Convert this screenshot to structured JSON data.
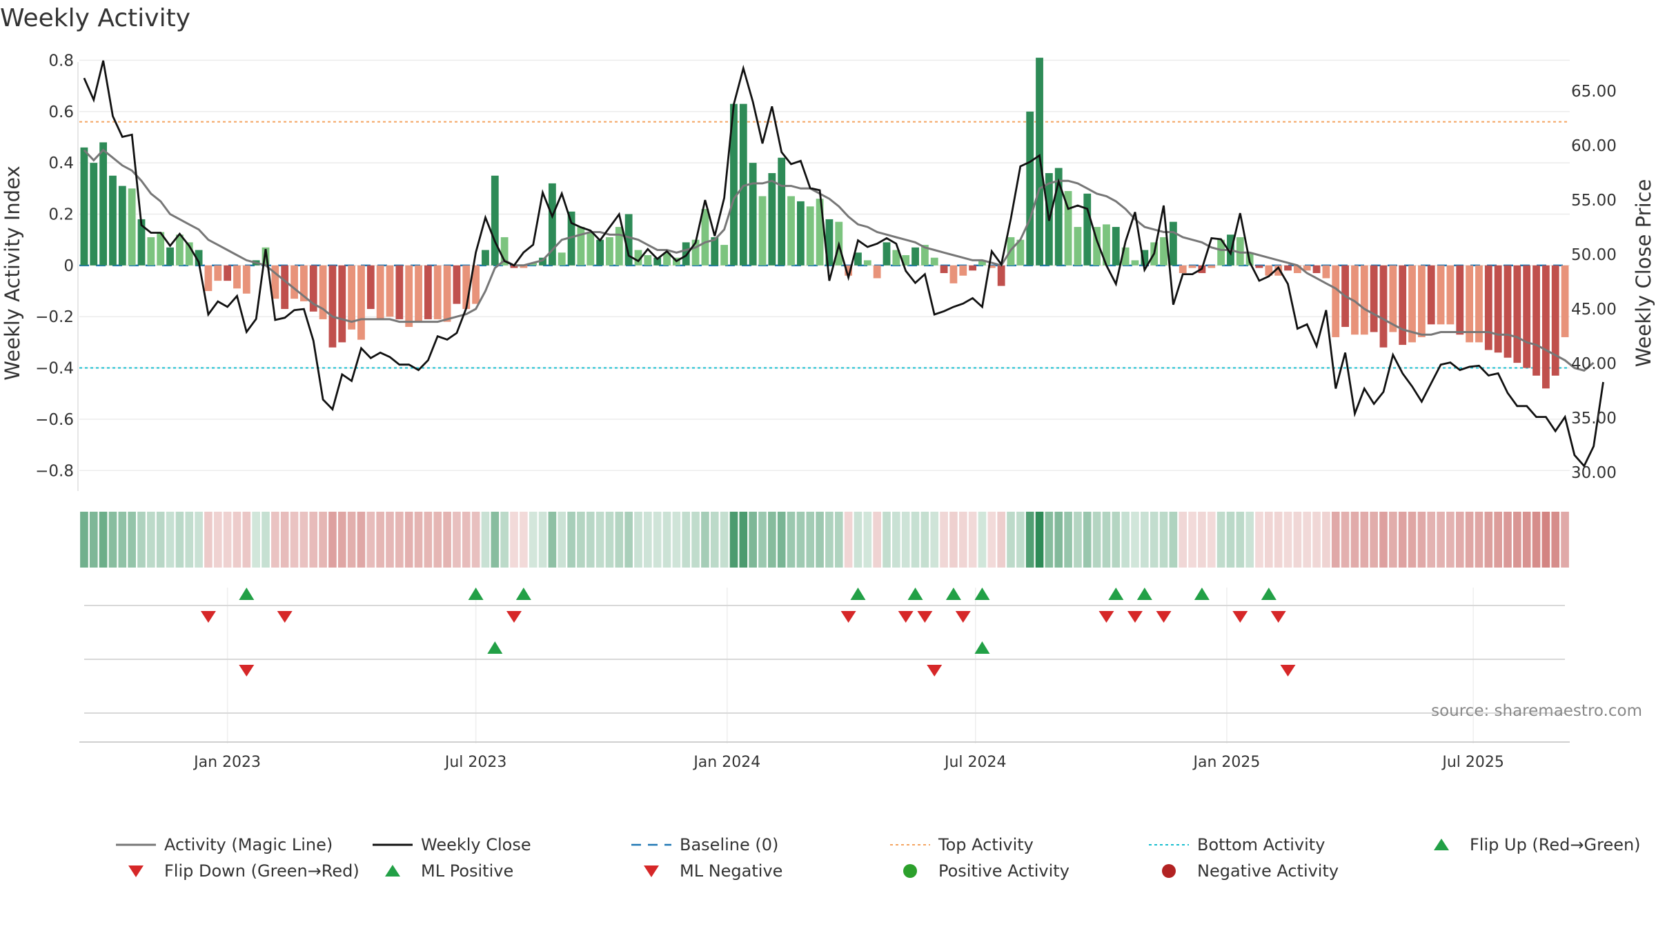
{
  "chart_data": {
    "type": "bar+line",
    "title": "Weekly Activity",
    "ylabel_left": "Weekly Activity Index",
    "ylabel_right": "Weekly Close Price",
    "ylim_left": [
      -0.88,
      0.82
    ],
    "ylim_right": [
      28.3,
      68.3
    ],
    "yticks_left": [
      0.8,
      0.6,
      0.4,
      0.2,
      0,
      -0.2,
      -0.4,
      -0.6,
      -0.8
    ],
    "yticks_left_labels": [
      "0.8",
      "0.6",
      "0.4",
      "0.2",
      "0",
      "−0.2",
      "−0.4",
      "−0.6",
      "−0.8"
    ],
    "yticks_right": [
      65,
      60,
      55,
      50,
      45,
      40,
      35,
      30
    ],
    "yticks_right_labels": [
      "65.00",
      "60.00",
      "55.00",
      "50.00",
      "45.00",
      "40.00",
      "35.00",
      "30.00"
    ],
    "x_start_week": -15,
    "xticks": [
      {
        "week": 0,
        "label": "Jan 2023"
      },
      {
        "week": 26,
        "label": "Jul 2023"
      },
      {
        "week": 52.3,
        "label": "Jan 2024"
      },
      {
        "week": 78.3,
        "label": "Jul 2024"
      },
      {
        "week": 104.6,
        "label": "Jan 2025"
      },
      {
        "week": 130.4,
        "label": "Jul 2025"
      }
    ],
    "top_activity": 0.56,
    "bottom_activity": -0.4,
    "activity": [
      0.46,
      0.4,
      0.48,
      0.35,
      0.31,
      0.3,
      0.18,
      0.11,
      0.13,
      0.07,
      0.12,
      0.09,
      0.06,
      -0.1,
      -0.06,
      -0.06,
      -0.09,
      -0.11,
      0.02,
      0.07,
      -0.13,
      -0.17,
      -0.13,
      -0.14,
      -0.18,
      -0.21,
      -0.32,
      -0.3,
      -0.25,
      -0.29,
      -0.17,
      -0.21,
      -0.2,
      -0.21,
      -0.24,
      -0.22,
      -0.21,
      -0.21,
      -0.22,
      -0.15,
      -0.17,
      -0.15,
      0.06,
      0.35,
      0.11,
      -0.01,
      -0.01,
      0.01,
      0.03,
      0.32,
      0.05,
      0.21,
      0.15,
      0.13,
      0.1,
      0.11,
      0.15,
      0.2,
      0.06,
      0.04,
      0.03,
      0.05,
      0.03,
      0.09,
      0.1,
      0.22,
      0.11,
      0.08,
      0.63,
      0.63,
      0.4,
      0.27,
      0.36,
      0.42,
      0.27,
      0.25,
      0.23,
      0.26,
      0.18,
      0.17,
      -0.04,
      0.05,
      0.02,
      -0.05,
      0.09,
      0.06,
      0.04,
      0.07,
      0.08,
      0.03,
      -0.03,
      -0.07,
      -0.04,
      -0.02,
      0.02,
      -0.01,
      -0.08,
      0.11,
      0.1,
      0.6,
      0.81,
      0.36,
      0.38,
      0.29,
      0.15,
      0.28,
      0.15,
      0.16,
      0.15,
      0.07,
      0.02,
      0.06,
      0.09,
      0.11,
      0.17,
      -0.03,
      -0.01,
      -0.03,
      -0.01,
      0.1,
      0.12,
      0.11,
      0.05,
      -0.01,
      -0.04,
      -0.04,
      -0.02,
      -0.03,
      -0.02,
      -0.03,
      -0.05,
      -0.28,
      -0.24,
      -0.27,
      -0.27,
      -0.26,
      -0.32,
      -0.26,
      -0.31,
      -0.3,
      -0.28,
      -0.23,
      -0.23,
      -0.23,
      -0.27,
      -0.3,
      -0.3,
      -0.33,
      -0.34,
      -0.36,
      -0.38,
      -0.4,
      -0.43,
      -0.48,
      -0.43,
      -0.28
    ],
    "magic_line": [
      0.45,
      0.41,
      0.45,
      0.42,
      0.39,
      0.37,
      0.33,
      0.28,
      0.25,
      0.2,
      0.18,
      0.16,
      0.14,
      0.1,
      0.08,
      0.06,
      0.04,
      0.02,
      0.01,
      0,
      -0.03,
      -0.06,
      -0.09,
      -0.12,
      -0.15,
      -0.17,
      -0.2,
      -0.21,
      -0.22,
      -0.21,
      -0.21,
      -0.21,
      -0.21,
      -0.22,
      -0.22,
      -0.22,
      -0.22,
      -0.22,
      -0.21,
      -0.2,
      -0.19,
      -0.17,
      -0.1,
      -0.01,
      0.02,
      0,
      0,
      0.01,
      0.02,
      0.06,
      0.1,
      0.11,
      0.12,
      0.13,
      0.13,
      0.12,
      0.12,
      0.11,
      0.1,
      0.08,
      0.06,
      0.06,
      0.05,
      0.06,
      0.07,
      0.09,
      0.1,
      0.14,
      0.26,
      0.31,
      0.32,
      0.32,
      0.33,
      0.31,
      0.31,
      0.3,
      0.3,
      0.28,
      0.26,
      0.23,
      0.19,
      0.16,
      0.15,
      0.13,
      0.12,
      0.11,
      0.1,
      0.09,
      0.07,
      0.06,
      0.05,
      0.04,
      0.03,
      0.02,
      0.02,
      0.01,
      0,
      0.06,
      0.1,
      0.18,
      0.3,
      0.32,
      0.33,
      0.33,
      0.32,
      0.3,
      0.28,
      0.27,
      0.25,
      0.22,
      0.18,
      0.15,
      0.14,
      0.13,
      0.13,
      0.11,
      0.1,
      0.09,
      0.07,
      0.06,
      0.06,
      0.05,
      0.05,
      0.04,
      0.03,
      0.02,
      0.01,
      0,
      -0.03,
      -0.05,
      -0.07,
      -0.09,
      -0.12,
      -0.14,
      -0.17,
      -0.19,
      -0.21,
      -0.23,
      -0.25,
      -0.26,
      -0.27,
      -0.27,
      -0.26,
      -0.26,
      -0.26,
      -0.26,
      -0.26,
      -0.26,
      -0.27,
      -0.27,
      -0.28,
      -0.3,
      -0.31,
      -0.33,
      -0.35,
      -0.37,
      -0.4,
      -0.41,
      -0.38
    ],
    "weekly_close": [
      66.2,
      64.2,
      67.8,
      62.7,
      60.8,
      61,
      52.7,
      52,
      52,
      50.8,
      51.9,
      50.8,
      49.3,
      44.5,
      45.7,
      45.2,
      46.2,
      42.9,
      44.1,
      50.5,
      44,
      44.2,
      44.9,
      45,
      42.1,
      36.7,
      35.8,
      39,
      38.4,
      41.4,
      40.5,
      41,
      40.6,
      39.9,
      39.9,
      39.4,
      40.3,
      42.5,
      42.2,
      42.8,
      45.1,
      50.2,
      53.4,
      51.2,
      49.4,
      49,
      50.2,
      50.9,
      55.7,
      53.5,
      55.6,
      52.9,
      52.5,
      52.2,
      51.3,
      52.5,
      53.7,
      49.9,
      49.4,
      50.5,
      49.6,
      50.3,
      49.4,
      49.9,
      51.1,
      55,
      51.7,
      55.2,
      63.8,
      67.1,
      64,
      60.2,
      63.6,
      59.4,
      58.3,
      58.6,
      56.1,
      55.9,
      47.6,
      50.9,
      47.9,
      51.3,
      50.7,
      51,
      51.5,
      51,
      48.5,
      47.4,
      48.2,
      44.5,
      44.8,
      45.2,
      45.5,
      46,
      45.2,
      50.3,
      49.1,
      53.3,
      58.1,
      58.5,
      59.1,
      53.1,
      56.7,
      54.2,
      54.5,
      54.2,
      51.3,
      49,
      47.3,
      51.2,
      53.9,
      48.6,
      50.1,
      54.5,
      45.4,
      48.2,
      48.2,
      48.7,
      51.5,
      51.4,
      50.1,
      53.8,
      49.3,
      47.6,
      48,
      48.8,
      47.3,
      43.2,
      43.6,
      41.6,
      44.9,
      37.7,
      41,
      35.4,
      37.7,
      36.3,
      37.4,
      40.8,
      39.1,
      37.9,
      36.5,
      38.2,
      39.9,
      40.1,
      39.4,
      39.7,
      39.8,
      38.9,
      39.1,
      37.3,
      36.1,
      36.1,
      35.1,
      35.1,
      33.8,
      35.1,
      31.6,
      30.6,
      32.4,
      38.3
    ],
    "flip_up_weeks": [
      2,
      26,
      31,
      66,
      72,
      76,
      79,
      93,
      96,
      102,
      109
    ],
    "flip_down_weeks": [
      -2,
      6,
      30,
      65,
      71,
      73,
      77,
      92,
      95,
      98,
      106,
      110
    ],
    "ml_positive_weeks": [
      28,
      79
    ],
    "ml_negative_weeks": [
      2,
      74,
      111
    ],
    "source": "source: sharemaestro.com",
    "colors": {
      "pos_strong": "#2e8b57",
      "pos_weak": "#7cc47f",
      "neg_strong": "#c0504d",
      "neg_weak": "#e8937a",
      "magic_line": "#777777",
      "close": "#111111",
      "baseline": "#1f77b4",
      "top": "#f4a460",
      "bottom": "#17becf",
      "up": "#22a046",
      "down": "#d62728",
      "positive_dot": "#2ca02c",
      "negative_dot": "#b22222"
    },
    "legend": [
      "Activity (Magic Line)",
      "Weekly Close",
      "Baseline (0)",
      "Top Activity",
      "Bottom Activity",
      "Flip Up (Red→Green)",
      "Flip Down (Green→Red)",
      "ML Positive",
      "ML Negative",
      "Positive Activity",
      "Negative Activity"
    ]
  }
}
